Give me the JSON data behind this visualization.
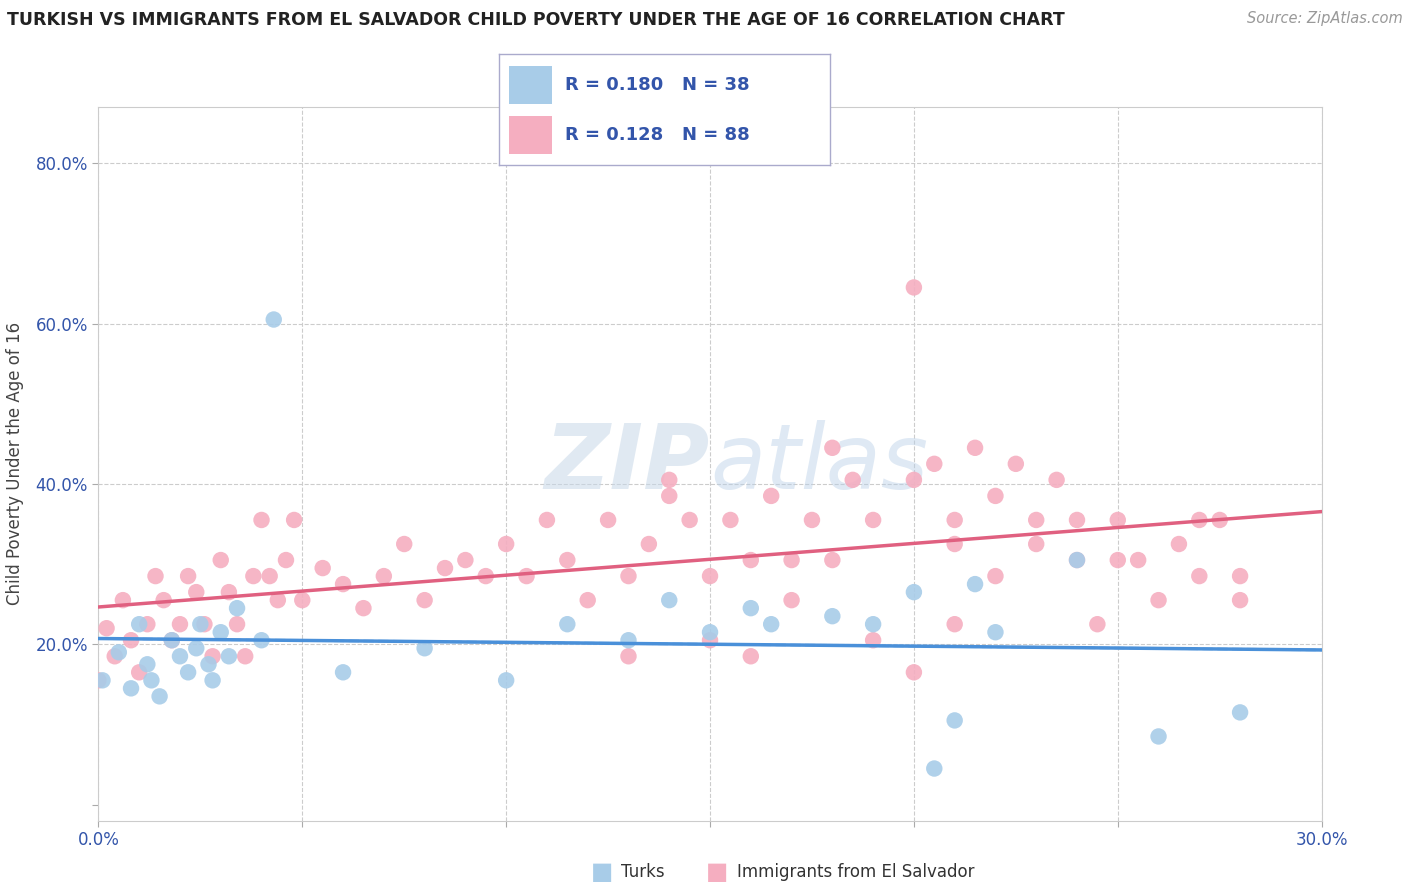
{
  "title": "TURKISH VS IMMIGRANTS FROM EL SALVADOR CHILD POVERTY UNDER THE AGE OF 16 CORRELATION CHART",
  "source": "Source: ZipAtlas.com",
  "ylabel": "Child Poverty Under the Age of 16",
  "xlim": [
    0.0,
    0.3
  ],
  "ylim": [
    -0.02,
    0.87
  ],
  "turks_color": "#a8cce8",
  "salvador_color": "#f5aec0",
  "turks_line_color": "#4a90d9",
  "salvador_line_color": "#e06080",
  "dashed_line_color": "#aaccee",
  "legend_color": "#3355aa",
  "R_turks": 0.18,
  "N_turks": 38,
  "R_salvador": 0.128,
  "N_salvador": 88,
  "turks_x": [
    0.001,
    0.005,
    0.008,
    0.01,
    0.012,
    0.013,
    0.015,
    0.018,
    0.02,
    0.022,
    0.024,
    0.025,
    0.027,
    0.028,
    0.03,
    0.032,
    0.034,
    0.04,
    0.043,
    0.06,
    0.08,
    0.1,
    0.115,
    0.13,
    0.14,
    0.15,
    0.16,
    0.165,
    0.18,
    0.19,
    0.2,
    0.205,
    0.21,
    0.215,
    0.22,
    0.24,
    0.26,
    0.28
  ],
  "turks_y": [
    0.155,
    0.19,
    0.145,
    0.225,
    0.175,
    0.155,
    0.135,
    0.205,
    0.185,
    0.165,
    0.195,
    0.225,
    0.175,
    0.155,
    0.215,
    0.185,
    0.245,
    0.205,
    0.605,
    0.165,
    0.195,
    0.155,
    0.225,
    0.205,
    0.255,
    0.215,
    0.245,
    0.225,
    0.235,
    0.225,
    0.265,
    0.045,
    0.105,
    0.275,
    0.215,
    0.305,
    0.085,
    0.115
  ],
  "salvador_x": [
    0.0,
    0.002,
    0.004,
    0.006,
    0.008,
    0.01,
    0.012,
    0.014,
    0.016,
    0.018,
    0.02,
    0.022,
    0.024,
    0.026,
    0.028,
    0.03,
    0.032,
    0.034,
    0.036,
    0.038,
    0.04,
    0.042,
    0.044,
    0.046,
    0.048,
    0.05,
    0.055,
    0.06,
    0.065,
    0.07,
    0.075,
    0.08,
    0.085,
    0.09,
    0.095,
    0.1,
    0.105,
    0.11,
    0.115,
    0.12,
    0.125,
    0.13,
    0.135,
    0.14,
    0.145,
    0.15,
    0.155,
    0.16,
    0.165,
    0.17,
    0.175,
    0.18,
    0.185,
    0.19,
    0.2,
    0.205,
    0.21,
    0.215,
    0.22,
    0.225,
    0.23,
    0.235,
    0.24,
    0.245,
    0.25,
    0.255,
    0.26,
    0.265,
    0.27,
    0.275,
    0.28,
    0.18,
    0.13,
    0.19,
    0.2,
    0.21,
    0.14,
    0.15,
    0.16,
    0.17,
    0.22,
    0.23,
    0.24,
    0.25,
    0.2,
    0.21,
    0.27,
    0.28
  ],
  "salvador_y": [
    0.155,
    0.22,
    0.185,
    0.255,
    0.205,
    0.165,
    0.225,
    0.285,
    0.255,
    0.205,
    0.225,
    0.285,
    0.265,
    0.225,
    0.185,
    0.305,
    0.265,
    0.225,
    0.185,
    0.285,
    0.355,
    0.285,
    0.255,
    0.305,
    0.355,
    0.255,
    0.295,
    0.275,
    0.245,
    0.285,
    0.325,
    0.255,
    0.295,
    0.305,
    0.285,
    0.325,
    0.285,
    0.355,
    0.305,
    0.255,
    0.355,
    0.285,
    0.325,
    0.405,
    0.355,
    0.285,
    0.355,
    0.305,
    0.385,
    0.305,
    0.355,
    0.305,
    0.405,
    0.355,
    0.645,
    0.425,
    0.355,
    0.445,
    0.385,
    0.425,
    0.355,
    0.405,
    0.305,
    0.225,
    0.355,
    0.305,
    0.255,
    0.325,
    0.285,
    0.355,
    0.285,
    0.445,
    0.185,
    0.205,
    0.165,
    0.225,
    0.385,
    0.205,
    0.185,
    0.255,
    0.285,
    0.325,
    0.355,
    0.305,
    0.405,
    0.325,
    0.355,
    0.255
  ]
}
